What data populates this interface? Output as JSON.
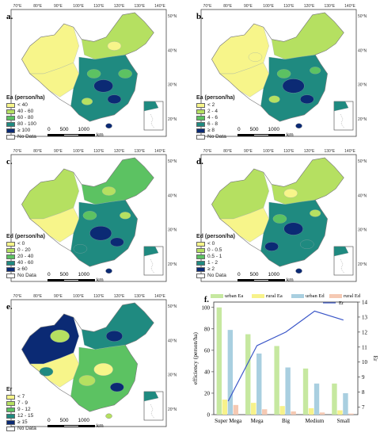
{
  "lon_labels": [
    "70°E",
    "80°E",
    "90°E",
    "100°E",
    "110°E",
    "120°E",
    "130°E",
    "140°E"
  ],
  "lat_labels": [
    "50°N",
    "40°N",
    "30°N",
    "20°N"
  ],
  "scale": {
    "ticks": [
      "0",
      "500",
      "1000"
    ],
    "unit": "km"
  },
  "no_data_color": "#ffffff",
  "panels": [
    {
      "label": "a.",
      "legend_title": "Ea (person/ha)",
      "classes": [
        {
          "label": "< 40",
          "color": "#f7f58a"
        },
        {
          "label": "40 - 60",
          "color": "#b5e061"
        },
        {
          "label": "60 - 80",
          "color": "#5cc262"
        },
        {
          "label": "80 - 100",
          "color": "#1f8a80"
        },
        {
          "label": "≥ 100",
          "color": "#0b2a74"
        },
        {
          "label": "No Data",
          "color": "#ffffff"
        }
      ]
    },
    {
      "label": "b.",
      "legend_title": "Ea (person/ha)",
      "classes": [
        {
          "label": "< 2",
          "color": "#f7f58a"
        },
        {
          "label": "2 - 4",
          "color": "#b5e061"
        },
        {
          "label": "4 - 6",
          "color": "#5cc262"
        },
        {
          "label": "6 - 8",
          "color": "#1f8a80"
        },
        {
          "label": "≥ 8",
          "color": "#0b2a74"
        },
        {
          "label": "No Data",
          "color": "#ffffff"
        }
      ]
    },
    {
      "label": "c.",
      "legend_title": "Ed (person/ha)",
      "classes": [
        {
          "label": "< 0",
          "color": "#f7f58a"
        },
        {
          "label": "0 - 20",
          "color": "#b5e061"
        },
        {
          "label": "20 - 40",
          "color": "#5cc262"
        },
        {
          "label": "40 - 60",
          "color": "#1f8a80"
        },
        {
          "label": "≥ 60",
          "color": "#0b2a74"
        },
        {
          "label": "No Data",
          "color": "#ffffff"
        }
      ]
    },
    {
      "label": "d.",
      "legend_title": "Ed (person/ha)",
      "classes": [
        {
          "label": "< 0",
          "color": "#f7f58a"
        },
        {
          "label": "0 - 0.5",
          "color": "#b5e061"
        },
        {
          "label": "0.5 - 1",
          "color": "#5cc262"
        },
        {
          "label": "1 - 2",
          "color": "#1f8a80"
        },
        {
          "label": "≥ 2",
          "color": "#0b2a74"
        },
        {
          "label": "No Data",
          "color": "#ffffff"
        }
      ]
    },
    {
      "label": "e.",
      "legend_title": "Er",
      "classes": [
        {
          "label": "< 7",
          "color": "#f7f58a"
        },
        {
          "label": "7 - 9",
          "color": "#b5e061"
        },
        {
          "label": "9 - 12",
          "color": "#5cc262"
        },
        {
          "label": "12 - 15",
          "color": "#1f8a80"
        },
        {
          "label": "≥ 15",
          "color": "#0b2a74"
        },
        {
          "label": "No Data",
          "color": "#ffffff"
        }
      ]
    }
  ],
  "chart_data": {
    "type": "bar",
    "panel_label": "f.",
    "categories": [
      "Super Mega",
      "Mega",
      "Big",
      "Medium",
      "Small"
    ],
    "ylabel": "efficiency (person/ha)",
    "y2label": "Er",
    "ylim": [
      0,
      105
    ],
    "yticks": [
      0,
      20,
      40,
      60,
      80,
      100
    ],
    "y2lim": [
      6.5,
      14
    ],
    "y2ticks": [
      7,
      8,
      9,
      10,
      11,
      12,
      13,
      14
    ],
    "legend_position": "top",
    "series": [
      {
        "name": "urban Ea",
        "color": "#c6e8a0",
        "values": [
          100,
          75,
          64,
          43,
          29
        ]
      },
      {
        "name": "rural Ea",
        "color": "#f7f28a",
        "values": [
          14,
          11,
          8,
          6,
          4
        ]
      },
      {
        "name": "urban Ed",
        "color": "#a9cfe0",
        "values": [
          79,
          57,
          44,
          29,
          20
        ]
      },
      {
        "name": "rural Ed",
        "color": "#f5c9b3",
        "values": [
          9,
          5,
          3,
          2,
          1
        ]
      }
    ],
    "line": {
      "name": "Er",
      "color": "#3a56c8",
      "values": [
        7.4,
        11.1,
        12.0,
        13.4,
        12.8
      ]
    }
  }
}
